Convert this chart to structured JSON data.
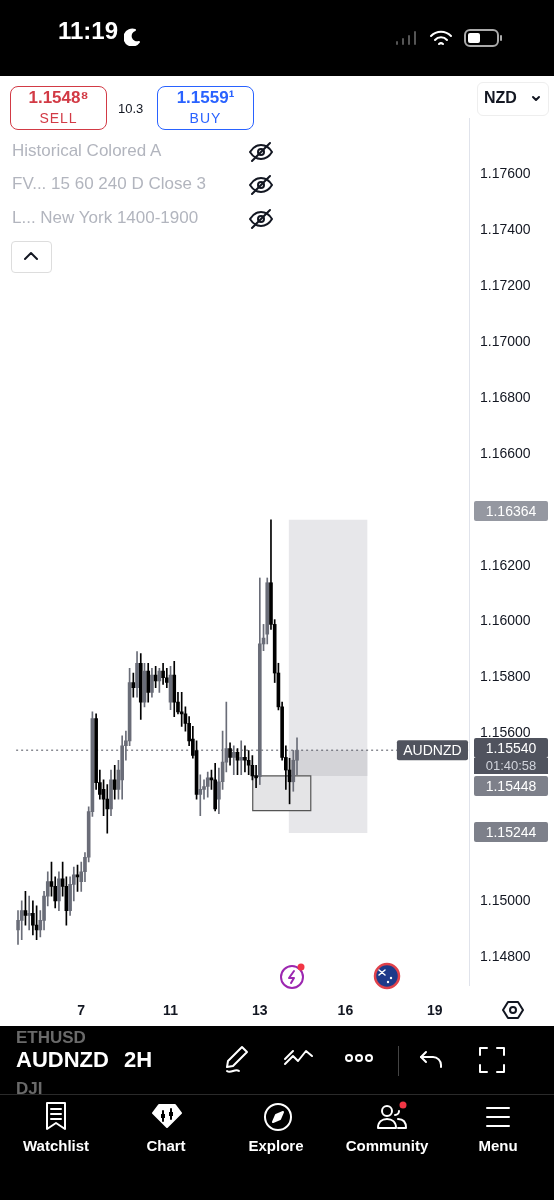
{
  "chart_data": {
    "type": "candlestick",
    "title": "AUDNZD",
    "subtitle": "2H",
    "categories": [
      null,
      null,
      null,
      null,
      null,
      null,
      null,
      null,
      null,
      null,
      null,
      null,
      null,
      null,
      null,
      null,
      null,
      "7",
      null,
      null,
      null,
      null,
      null,
      null,
      null,
      null,
      null,
      null,
      null,
      null,
      null,
      null,
      null,
      null,
      null,
      null,
      null,
      null,
      null,
      null,
      null,
      "11",
      null,
      null,
      null,
      null,
      null,
      null,
      null,
      null,
      null,
      null,
      null,
      null,
      null,
      null,
      null,
      null,
      null,
      null,
      null,
      null,
      null,
      null,
      null,
      "13",
      null,
      null,
      null,
      null,
      null,
      null,
      null,
      null,
      null,
      null,
      null,
      null,
      null,
      null,
      null,
      null,
      null,
      null,
      null,
      null,
      null,
      null,
      "16",
      null,
      null,
      null,
      null,
      null,
      null,
      null,
      null,
      null,
      null,
      null,
      null,
      null,
      null,
      null,
      null,
      null,
      null,
      null,
      null,
      null,
      null,
      null,
      "19",
      null,
      null,
      null,
      null,
      null,
      null,
      null,
      null,
      null
    ],
    "ohlc": [
      [
        1.14897,
        1.14966,
        1.14845,
        1.14931
      ],
      [
        1.14931,
        1.15001,
        1.14862,
        1.14966
      ],
      [
        1.14966,
        1.15035,
        1.14914,
        1.14949
      ],
      [
        1.14949,
        1.15018,
        1.14897,
        1.14956
      ],
      [
        1.14956,
        1.15001,
        1.14879,
        1.14914
      ],
      [
        1.14914,
        1.14983,
        1.14862,
        1.14897
      ],
      [
        1.14897,
        1.14966,
        1.14872,
        1.14931
      ],
      [
        1.14931,
        1.15035,
        1.14897,
        1.15018
      ],
      [
        1.15018,
        1.15105,
        1.14983,
        1.1507
      ],
      [
        1.1507,
        1.1514,
        1.15018,
        1.15053
      ],
      [
        1.15053,
        1.15087,
        1.14976,
        1.15001
      ],
      [
        1.15001,
        1.15105,
        1.14966,
        1.1508
      ],
      [
        1.1508,
        1.1514,
        1.15018,
        1.15053
      ],
      [
        1.15053,
        1.15087,
        1.14914,
        1.14966
      ],
      [
        1.14966,
        1.15087,
        1.14949,
        1.1506
      ],
      [
        1.1506,
        1.15122,
        1.15001,
        1.15094
      ],
      [
        1.15094,
        1.15129,
        1.15035,
        1.15087
      ],
      [
        1.1507,
        1.1514,
        1.15035,
        1.15105
      ],
      [
        1.15105,
        1.15174,
        1.1507,
        1.15157
      ],
      [
        1.15157,
        1.15337,
        1.1514,
        1.1532
      ],
      [
        1.1532,
        1.15677,
        1.15303,
        1.15653
      ],
      [
        1.15653,
        1.1567,
        1.154,
        1.15424
      ],
      [
        1.15424,
        1.15469,
        1.15365,
        1.15382
      ],
      [
        1.154,
        1.15434,
        1.15306,
        1.15365
      ],
      [
        1.15365,
        1.15417,
        1.15243,
        1.1533
      ],
      [
        1.1533,
        1.15469,
        1.15306,
        1.15434
      ],
      [
        1.15434,
        1.15486,
        1.15365,
        1.154
      ],
      [
        1.154,
        1.15504,
        1.15365,
        1.15469
      ],
      [
        1.15434,
        1.15591,
        1.15365,
        1.15556
      ],
      [
        1.15556,
        1.15608,
        1.15504,
        1.15573
      ],
      [
        1.15573,
        1.15833,
        1.15556,
        1.15782
      ],
      [
        1.15782,
        1.15816,
        1.1573,
        1.15764
      ],
      [
        1.15764,
        1.15893,
        1.1573,
        1.15851
      ],
      [
        1.15851,
        1.15886,
        1.1565,
        1.15712
      ],
      [
        1.15712,
        1.15851,
        1.15695,
        1.15823
      ],
      [
        1.15823,
        1.15851,
        1.15712,
        1.15747
      ],
      [
        1.15747,
        1.15833,
        1.1573,
        1.15809
      ],
      [
        1.15809,
        1.1584,
        1.15764,
        1.15788
      ],
      [
        1.15788,
        1.15833,
        1.15747,
        1.15823
      ],
      [
        1.15823,
        1.15851,
        1.15775,
        1.15799
      ],
      [
        1.15799,
        1.15833,
        1.15764,
        1.15782
      ],
      [
        1.15712,
        1.1584,
        1.15685,
        1.15809
      ],
      [
        1.15809,
        1.15858,
        1.1566,
        1.15712
      ],
      [
        1.15712,
        1.15747,
        1.1567,
        1.15677
      ],
      [
        1.15677,
        1.15747,
        1.15625,
        1.1567
      ],
      [
        1.1567,
        1.15695,
        1.15608,
        1.15636
      ],
      [
        1.15636,
        1.1566,
        1.15556,
        1.15573
      ],
      [
        1.1558,
        1.15625,
        1.15511,
        1.15521
      ],
      [
        1.15539,
        1.15573,
        1.15365,
        1.15382
      ],
      [
        1.15382,
        1.15452,
        1.15306,
        1.154
      ],
      [
        1.154,
        1.15434,
        1.15365,
        1.1541
      ],
      [
        1.1541,
        1.15462,
        1.15372,
        1.15441
      ],
      [
        1.15441,
        1.15469,
        1.154,
        1.15434
      ],
      [
        1.15434,
        1.15493,
        1.15323,
        1.1533
      ],
      [
        1.15365,
        1.15476,
        1.15313,
        1.15427
      ],
      [
        1.15427,
        1.15608,
        1.154,
        1.15497
      ],
      [
        1.15497,
        1.15712,
        1.15462,
        1.15546
      ],
      [
        1.15546,
        1.15566,
        1.15486,
        1.15514
      ],
      [
        1.15514,
        1.15556,
        1.15452,
        1.15532
      ],
      [
        1.15532,
        1.15546,
        1.15452,
        1.15504
      ],
      [
        1.15504,
        1.15573,
        1.15452,
        1.15514
      ],
      [
        1.15514,
        1.15556,
        1.15462,
        1.15504
      ],
      [
        1.15504,
        1.15539,
        1.15452,
        1.15486
      ],
      [
        1.15486,
        1.15521,
        1.15434,
        1.15448
      ],
      [
        1.15448,
        1.15486,
        1.15406,
        1.15441
      ],
      [
        1.15445,
        1.16156,
        1.15417,
        1.1592
      ],
      [
        1.1592,
        1.1599,
        1.15896,
        1.15941
      ],
      [
        1.15955,
        1.16156,
        1.1592,
        1.16139
      ],
      [
        1.16139,
        1.16364,
        1.15972,
        1.1599
      ],
      [
        1.1599,
        1.16007,
        1.15782,
        1.15816
      ],
      [
        1.15816,
        1.15851,
        1.15684,
        1.15695
      ],
      [
        1.15695,
        1.15712,
        1.15504,
        1.15514
      ],
      [
        1.15514,
        1.15556,
        1.154,
        1.15469
      ],
      [
        1.15469,
        1.15511,
        1.15348,
        1.15427
      ],
      [
        1.15427,
        1.15539,
        1.15393,
        1.15504
      ],
      [
        1.15504,
        1.15584,
        1.15452,
        1.1554
      ],
      null,
      null,
      null,
      null,
      null,
      null,
      null,
      null,
      null,
      null,
      null,
      null,
      null,
      null,
      null,
      null,
      null,
      null,
      null,
      null,
      null,
      null,
      null,
      null,
      null,
      null,
      null,
      null,
      null,
      null,
      null,
      null,
      null,
      null,
      null,
      null,
      null,
      null,
      null,
      null,
      null,
      null,
      null,
      null,
      null,
      null
    ],
    "colors": [
      "#6a6d78",
      "#6a6d78",
      "#000000",
      "#6a6d78",
      "#000000",
      "#000000",
      "#6a6d78",
      "#6a6d78",
      "#6a6d78",
      "#000000",
      "#000000",
      "#6a6d78",
      "#000000",
      "#000000",
      "#6a6d78",
      "#6a6d78",
      "#000000",
      "#6a6d78",
      "#6a6d78",
      "#6a6d78",
      "#6a6d78",
      "#000000",
      "#000000",
      "#000000",
      "#000000",
      "#6a6d78",
      "#000000",
      "#6a6d78",
      "#6a6d78",
      "#6a6d78",
      "#6a6d78",
      "#000000",
      "#6a6d78",
      "#000000",
      "#6a6d78",
      "#000000",
      "#6a6d78",
      "#000000",
      "#6a6d78",
      "#000000",
      "#000000",
      "#6a6d78",
      "#000000",
      "#000000",
      "#000000",
      "#000000",
      "#000000",
      "#000000",
      "#000000",
      "#6a6d78",
      "#6a6d78",
      "#6a6d78",
      "#000000",
      "#000000",
      "#6a6d78",
      "#6a6d78",
      "#6a6d78",
      "#000000",
      "#6a6d78",
      "#000000",
      "#6a6d78",
      "#000000",
      "#000000",
      "#000000",
      "#000000",
      "#6a6d78",
      "#6a6d78",
      "#6a6d78",
      "#000000",
      "#000000",
      "#000000",
      "#000000",
      "#000000",
      "#000000",
      "#6a6d78",
      "#6a6d78",
      "#000000",
      "#000000",
      "#000000",
      "#000000",
      "#000000",
      "#000000",
      "#000000",
      "#000000",
      "#000000",
      "#000000",
      "#000000",
      "#000000",
      "#000000",
      "#000000",
      "#000000",
      "#000000",
      "#000000",
      "#000000",
      "#000000",
      "#000000",
      "#000000",
      "#000000",
      "#000000",
      "#000000",
      "#000000",
      "#000000",
      "#000000",
      "#000000",
      "#000000",
      "#000000",
      "#000000",
      "#000000",
      "#000000",
      "#000000",
      "#000000",
      "#000000",
      "#000000",
      "#000000",
      "#000000",
      "#000000",
      "#000000",
      "#000000",
      "#000000",
      "#000000",
      "#000000",
      "#000000"
    ],
    "ylim": [
      1.147,
      1.178
    ],
    "yticks": [
      {
        "value": 1.148,
        "label": "1.14800"
      },
      {
        "value": 1.15,
        "label": "1.15000"
      },
      {
        "value": 1.156,
        "label": "1.15600"
      },
      {
        "value": 1.158,
        "label": "1.15800"
      },
      {
        "value": 1.16,
        "label": "1.16000"
      },
      {
        "value": 1.162,
        "label": "1.16200"
      },
      {
        "value": 1.166,
        "label": "1.16600"
      },
      {
        "value": 1.168,
        "label": "1.16800"
      },
      {
        "value": 1.17,
        "label": "1.17000"
      },
      {
        "value": 1.172,
        "label": "1.17200"
      },
      {
        "value": 1.174,
        "label": "1.17400"
      },
      {
        "value": 1.176,
        "label": "1.17600"
      }
    ],
    "bands": [
      {
        "axis": "y",
        "from": 1.15244,
        "to": 1.16364,
        "color": "#e7e7ea"
      },
      {
        "axis": "y",
        "from": 1.15448,
        "to": 1.1554,
        "color": "#d4d4d8"
      },
      {
        "axis": "y",
        "from": 1.15324,
        "to": 1.15448,
        "color": "#e4e4e6"
      }
    ],
    "ref_lines": [
      {
        "axis": "y",
        "value": 1.1554,
        "label": "AUDNZD",
        "color": "#50535e",
        "line_style": "dotted"
      }
    ],
    "annotations": [
      "11:19",
      "1.1548⁸",
      "SELL",
      "10.3",
      "1.1559¹",
      "BUY",
      "NZD",
      "Historical Colored A",
      "FV...  15 60 240 D Close 3",
      "L...  New York 1400-1900",
      "01:40:58",
      "ETHUSD",
      "DJI",
      "Watchlist",
      "Chart",
      "Explore",
      "Community",
      "Menu",
      "1.16364",
      "1.15448",
      "1.15244",
      "1.15540"
    ]
  }
}
